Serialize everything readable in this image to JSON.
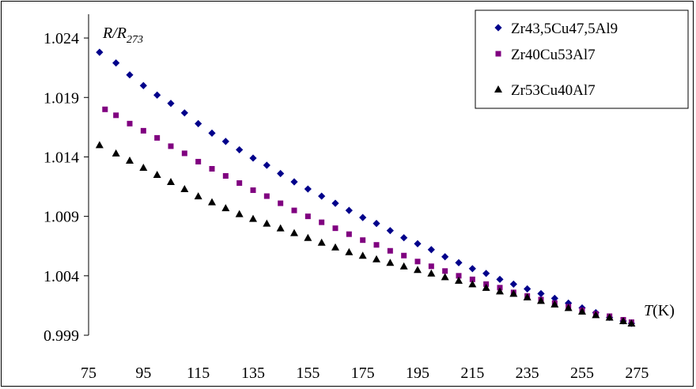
{
  "chart_data": {
    "type": "scatter",
    "title": "",
    "ylabel": "R/R",
    "ylabel_sub": "273",
    "xlabel": "T",
    "xlabel_unit": "(K)",
    "xlim": [
      75,
      285
    ],
    "ylim": [
      0.999,
      1.026
    ],
    "x_ticks": [
      75,
      95,
      115,
      135,
      155,
      175,
      195,
      215,
      235,
      255,
      275
    ],
    "x_tick_labels": [
      "75",
      "95",
      "115",
      "135",
      "155",
      "175",
      "195",
      "215",
      "235",
      "255",
      "275"
    ],
    "y_ticks": [
      0.999,
      1.004,
      1.009,
      1.014,
      1.019,
      1.024
    ],
    "y_tick_labels": [
      "0.999",
      "1.004",
      "1.009",
      "1.014",
      "1.019",
      "1.024"
    ],
    "grid": false,
    "legend_position": "top-right",
    "series": [
      {
        "name": "Zr43,5Cu47,5Al9",
        "marker": "diamond",
        "color": "#00008b",
        "x": [
          79,
          85,
          90,
          95,
          100,
          105,
          110,
          115,
          120,
          125,
          130,
          135,
          140,
          145,
          150,
          155,
          160,
          165,
          170,
          175,
          180,
          185,
          190,
          195,
          200,
          205,
          210,
          215,
          220,
          225,
          230,
          235,
          240,
          245,
          250,
          255,
          260,
          265,
          270,
          273
        ],
        "values": [
          1.0228,
          1.0219,
          1.0209,
          1.02,
          1.0192,
          1.0185,
          1.0177,
          1.0168,
          1.016,
          1.0153,
          1.0146,
          1.0139,
          1.0133,
          1.0126,
          1.0119,
          1.0113,
          1.0107,
          1.0101,
          1.0095,
          1.0089,
          1.0084,
          1.0078,
          1.0072,
          1.0067,
          1.0062,
          1.0056,
          1.0051,
          1.0046,
          1.0042,
          1.0037,
          1.0033,
          1.0029,
          1.0025,
          1.0021,
          1.0017,
          1.0013,
          1.0009,
          1.0005,
          1.0002,
          1.0
        ]
      },
      {
        "name": "Zr40Cu53Al7",
        "marker": "square",
        "color": "#800080",
        "x": [
          81,
          85,
          90,
          95,
          100,
          105,
          110,
          115,
          120,
          125,
          130,
          135,
          140,
          145,
          150,
          155,
          160,
          165,
          170,
          175,
          180,
          185,
          190,
          195,
          200,
          205,
          210,
          215,
          220,
          225,
          230,
          235,
          240,
          245,
          250,
          255,
          260,
          265,
          270,
          273
        ],
        "values": [
          1.018,
          1.0175,
          1.0168,
          1.0162,
          1.0156,
          1.0149,
          1.0143,
          1.0136,
          1.013,
          1.0124,
          1.0118,
          1.0112,
          1.0107,
          1.0101,
          1.0095,
          1.009,
          1.0085,
          1.008,
          1.0075,
          1.007,
          1.0066,
          1.0061,
          1.0057,
          1.0052,
          1.0048,
          1.0044,
          1.004,
          1.0037,
          1.0033,
          1.003,
          1.0026,
          1.0023,
          1.002,
          1.0017,
          1.0014,
          1.0011,
          1.0008,
          1.0006,
          1.0003,
          1.0001
        ]
      },
      {
        "name": "Zr53Cu40Al7",
        "marker": "triangle",
        "color": "#000000",
        "x": [
          79,
          85,
          90,
          95,
          100,
          105,
          110,
          115,
          120,
          125,
          130,
          135,
          140,
          145,
          150,
          155,
          160,
          165,
          170,
          175,
          180,
          185,
          190,
          195,
          200,
          205,
          210,
          215,
          220,
          225,
          230,
          235,
          240,
          245,
          250,
          255,
          260,
          265,
          270,
          273
        ],
        "values": [
          1.015,
          1.0143,
          1.0137,
          1.0131,
          1.0125,
          1.0119,
          1.0113,
          1.0107,
          1.0102,
          1.0097,
          1.0092,
          1.0088,
          1.0084,
          1.008,
          1.0076,
          1.0072,
          1.0068,
          1.0064,
          1.006,
          1.0057,
          1.0054,
          1.0051,
          1.0048,
          1.0045,
          1.0042,
          1.0039,
          1.0036,
          1.0033,
          1.003,
          1.0027,
          1.0025,
          1.0022,
          1.0019,
          1.0016,
          1.0013,
          1.001,
          1.0007,
          1.0005,
          1.0002,
          1.0
        ]
      }
    ]
  }
}
